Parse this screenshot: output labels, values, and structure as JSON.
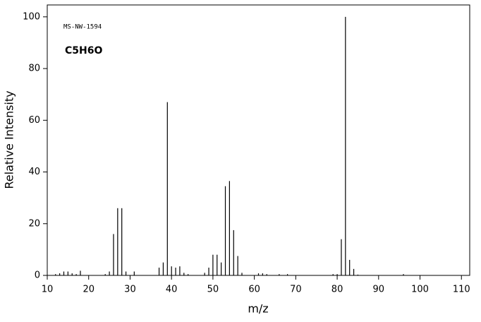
{
  "chart_data": {
    "type": "stem",
    "annotation": "MS-NW-1594",
    "formula": "C5H6O",
    "x_label": "m/z",
    "y_label": "Relative Intensity",
    "x": [
      12,
      13,
      14,
      15,
      16,
      17,
      18,
      24,
      25,
      26,
      27,
      28,
      29,
      31,
      37,
      38,
      39,
      40,
      41,
      42,
      43,
      44,
      48,
      49,
      50,
      51,
      52,
      53,
      54,
      55,
      56,
      57,
      61,
      62,
      63,
      66,
      68,
      79,
      80,
      81,
      82,
      83,
      84,
      85,
      96
    ],
    "values": [
      0.5,
      0.8,
      1.5,
      1.5,
      0.8,
      0.5,
      1.8,
      0.5,
      1.5,
      16,
      26,
      26,
      1.5,
      1.5,
      3,
      5,
      67,
      3.5,
      3,
      3.5,
      1,
      0.5,
      1,
      3,
      8,
      8,
      5,
      34.5,
      36.5,
      17.5,
      7.5,
      1,
      0.8,
      0.8,
      0.5,
      0.5,
      0.5,
      0.5,
      0.5,
      14,
      100,
      6,
      2.5,
      0.3,
      0.5
    ],
    "color": "#000000",
    "xlim": [
      10,
      112
    ],
    "ylim": [
      0,
      104.6
    ],
    "xticks": [
      10,
      20,
      30,
      40,
      50,
      60,
      70,
      80,
      90,
      100,
      110
    ],
    "yticks": [
      0,
      20,
      40,
      60,
      80,
      100
    ]
  }
}
